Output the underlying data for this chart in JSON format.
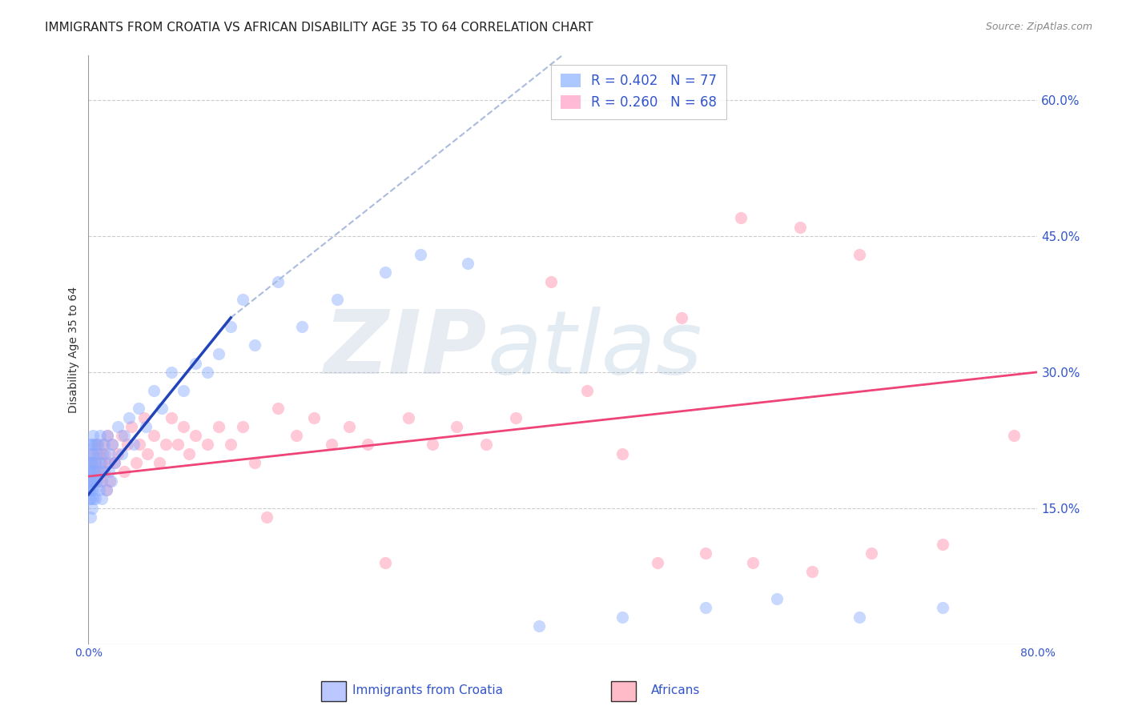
{
  "title": "IMMIGRANTS FROM CROATIA VS AFRICAN DISABILITY AGE 35 TO 64 CORRELATION CHART",
  "source": "Source: ZipAtlas.com",
  "ylabel": "Disability Age 35 to 64",
  "xlim": [
    0.0,
    0.8
  ],
  "ylim": [
    0.0,
    0.65
  ],
  "yticks_right": [
    0.15,
    0.3,
    0.45,
    0.6
  ],
  "yticklabels_right": [
    "15.0%",
    "30.0%",
    "45.0%",
    "60.0%"
  ],
  "legend_entries": [
    {
      "label": "R = 0.402   N = 77",
      "color": "#99bbff"
    },
    {
      "label": "R = 0.260   N = 68",
      "color": "#ffaacc"
    }
  ],
  "watermark_zip": "ZIP",
  "watermark_atlas": "atlas",
  "scatter_croatia": {
    "color": "#88aaff",
    "alpha": 0.45,
    "size": 120,
    "x": [
      0.0005,
      0.0008,
      0.001,
      0.001,
      0.001,
      0.0012,
      0.0012,
      0.0015,
      0.0015,
      0.002,
      0.002,
      0.002,
      0.002,
      0.002,
      0.0025,
      0.003,
      0.003,
      0.003,
      0.003,
      0.004,
      0.004,
      0.004,
      0.004,
      0.005,
      0.005,
      0.005,
      0.006,
      0.006,
      0.007,
      0.007,
      0.008,
      0.008,
      0.009,
      0.01,
      0.01,
      0.011,
      0.011,
      0.012,
      0.012,
      0.013,
      0.014,
      0.015,
      0.016,
      0.017,
      0.018,
      0.019,
      0.02,
      0.022,
      0.025,
      0.028,
      0.03,
      0.034,
      0.038,
      0.042,
      0.048,
      0.055,
      0.062,
      0.07,
      0.08,
      0.09,
      0.1,
      0.11,
      0.12,
      0.13,
      0.14,
      0.16,
      0.18,
      0.21,
      0.25,
      0.28,
      0.32,
      0.38,
      0.45,
      0.52,
      0.58,
      0.65,
      0.72
    ],
    "y": [
      0.17,
      0.19,
      0.16,
      0.18,
      0.2,
      0.17,
      0.19,
      0.18,
      0.21,
      0.16,
      0.18,
      0.2,
      0.22,
      0.14,
      0.19,
      0.17,
      0.2,
      0.22,
      0.15,
      0.18,
      0.21,
      0.16,
      0.23,
      0.19,
      0.17,
      0.22,
      0.2,
      0.16,
      0.21,
      0.18,
      0.19,
      0.22,
      0.17,
      0.2,
      0.23,
      0.18,
      0.16,
      0.21,
      0.19,
      0.22,
      0.2,
      0.17,
      0.23,
      0.19,
      0.21,
      0.18,
      0.22,
      0.2,
      0.24,
      0.21,
      0.23,
      0.25,
      0.22,
      0.26,
      0.24,
      0.28,
      0.26,
      0.3,
      0.28,
      0.31,
      0.3,
      0.32,
      0.35,
      0.38,
      0.33,
      0.4,
      0.35,
      0.38,
      0.41,
      0.43,
      0.42,
      0.02,
      0.03,
      0.04,
      0.05,
      0.03,
      0.04
    ]
  },
  "trendline_croatia_solid": {
    "color": "#2244bb",
    "linewidth": 2.5,
    "x": [
      0.0,
      0.12
    ],
    "y": [
      0.165,
      0.36
    ]
  },
  "trendline_croatia_dashed": {
    "color": "#aabbdd",
    "linewidth": 1.5,
    "linestyle": "--",
    "x": [
      0.12,
      0.4
    ],
    "y": [
      0.36,
      0.65
    ]
  },
  "scatter_africans": {
    "color": "#ff88aa",
    "alpha": 0.45,
    "size": 120,
    "x": [
      0.002,
      0.003,
      0.004,
      0.005,
      0.006,
      0.007,
      0.008,
      0.009,
      0.01,
      0.011,
      0.012,
      0.013,
      0.014,
      0.015,
      0.016,
      0.017,
      0.018,
      0.02,
      0.022,
      0.025,
      0.028,
      0.03,
      0.033,
      0.036,
      0.04,
      0.043,
      0.047,
      0.05,
      0.055,
      0.06,
      0.065,
      0.07,
      0.075,
      0.08,
      0.085,
      0.09,
      0.1,
      0.11,
      0.12,
      0.13,
      0.14,
      0.15,
      0.16,
      0.175,
      0.19,
      0.205,
      0.22,
      0.235,
      0.25,
      0.27,
      0.29,
      0.31,
      0.335,
      0.36,
      0.39,
      0.42,
      0.45,
      0.48,
      0.52,
      0.56,
      0.61,
      0.66,
      0.72,
      0.78,
      0.5,
      0.55,
      0.6,
      0.65
    ],
    "y": [
      0.2,
      0.19,
      0.21,
      0.18,
      0.2,
      0.22,
      0.19,
      0.21,
      0.18,
      0.2,
      0.22,
      0.19,
      0.21,
      0.17,
      0.23,
      0.2,
      0.18,
      0.22,
      0.2,
      0.21,
      0.23,
      0.19,
      0.22,
      0.24,
      0.2,
      0.22,
      0.25,
      0.21,
      0.23,
      0.2,
      0.22,
      0.25,
      0.22,
      0.24,
      0.21,
      0.23,
      0.22,
      0.24,
      0.22,
      0.24,
      0.2,
      0.14,
      0.26,
      0.23,
      0.25,
      0.22,
      0.24,
      0.22,
      0.09,
      0.25,
      0.22,
      0.24,
      0.22,
      0.25,
      0.4,
      0.28,
      0.21,
      0.09,
      0.1,
      0.09,
      0.08,
      0.1,
      0.11,
      0.23,
      0.36,
      0.47,
      0.46,
      0.43
    ]
  },
  "trendline_africans": {
    "color": "#ee4477",
    "linewidth": 2.0,
    "x": [
      0.0,
      0.8
    ],
    "y": [
      0.185,
      0.3
    ]
  },
  "grid_color": "#cccccc",
  "background_color": "#ffffff",
  "title_fontsize": 11,
  "axis_label_color": "#3355cc",
  "ylabel_color": "#333333"
}
